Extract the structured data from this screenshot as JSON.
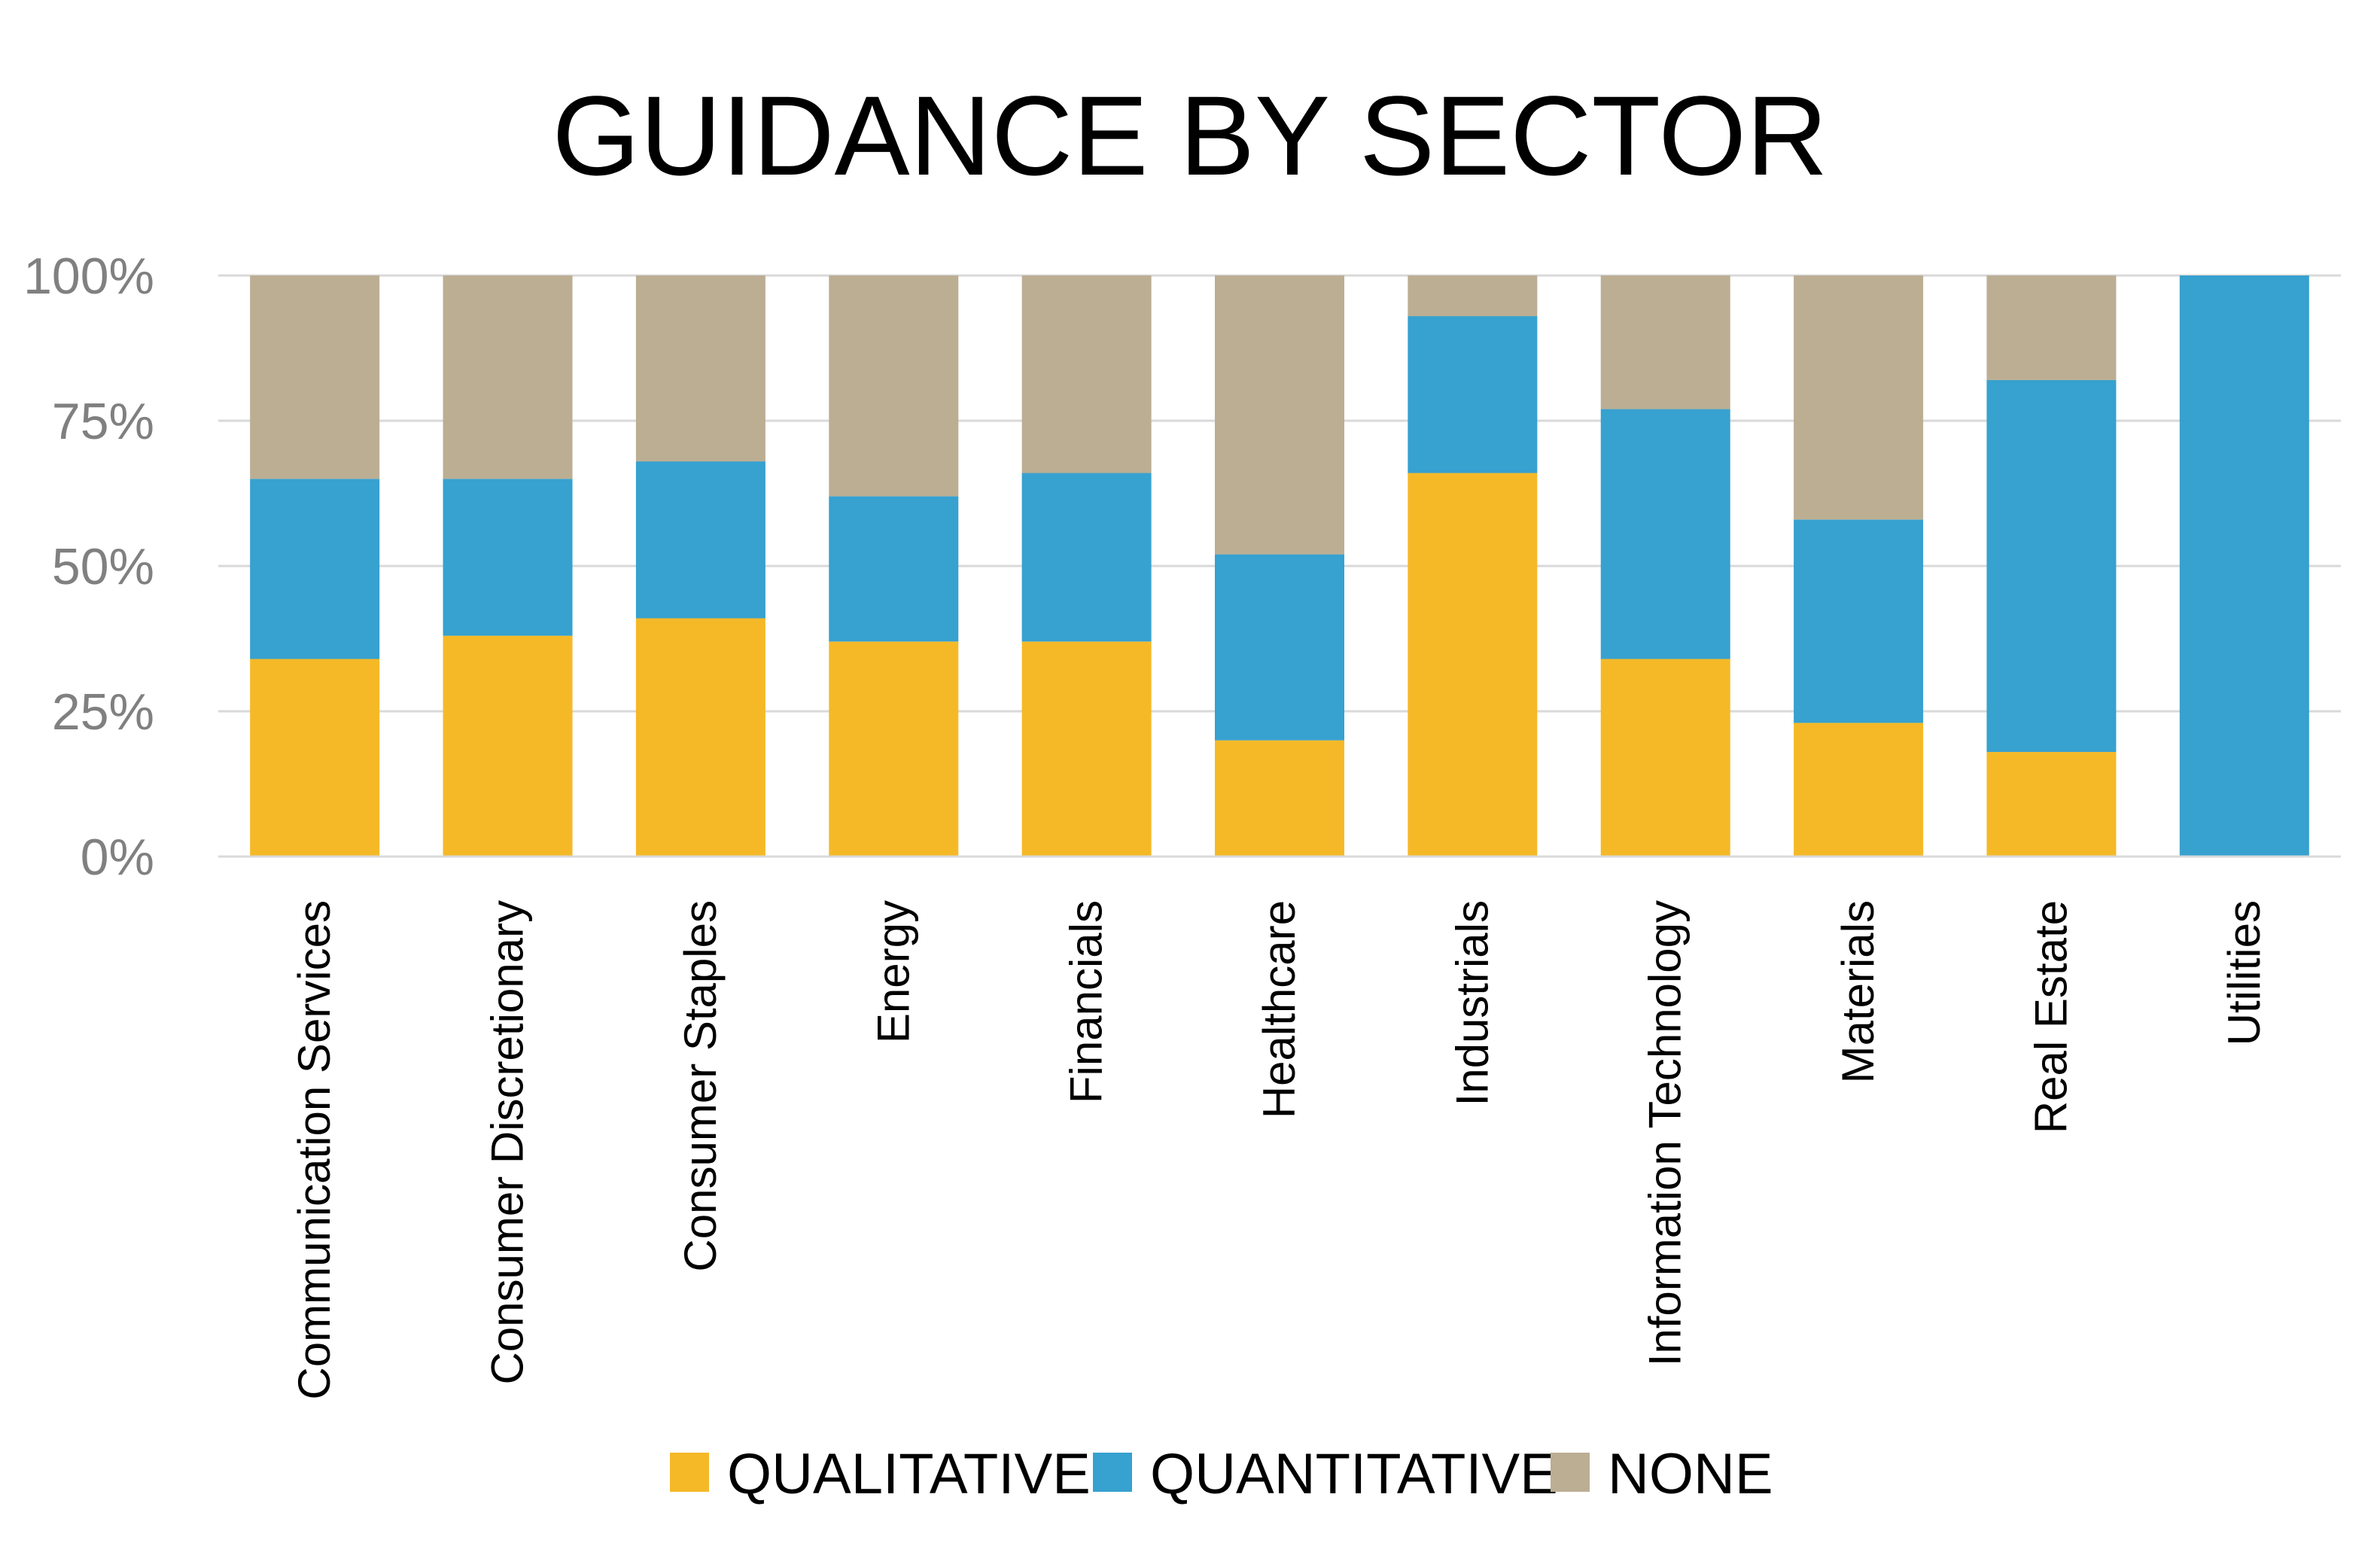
{
  "chart_data": {
    "type": "bar",
    "stacked": true,
    "title": "GUIDANCE BY SECTOR",
    "xlabel": "",
    "ylabel": "",
    "ylim": [
      0,
      100
    ],
    "y_ticks": [
      0,
      25,
      50,
      75,
      100
    ],
    "y_tick_labels": [
      "0%",
      "25%",
      "50%",
      "75%",
      "100%"
    ],
    "grid": true,
    "legend_position": "bottom",
    "categories": [
      "Communication Services",
      "Consumer Discretionary",
      "Consumer Staples",
      "Energy",
      "Financials",
      "Healthcare",
      "Industrials",
      "Information Technology",
      "Materials",
      "Real Estate",
      "Utilities"
    ],
    "series": [
      {
        "name": "QUALITATIVE",
        "color": "#F5B928",
        "values": [
          34,
          38,
          41,
          37,
          37,
          20,
          66,
          34,
          23,
          18,
          0
        ]
      },
      {
        "name": "QUANTITATIVE",
        "color": "#37A1CF",
        "values": [
          31,
          27,
          27,
          25,
          29,
          32,
          27,
          43,
          35,
          64,
          100
        ]
      },
      {
        "name": "NONE",
        "color": "#BCAE93",
        "values": [
          35,
          35,
          32,
          38,
          34,
          48,
          7,
          23,
          42,
          18,
          0
        ]
      }
    ]
  }
}
